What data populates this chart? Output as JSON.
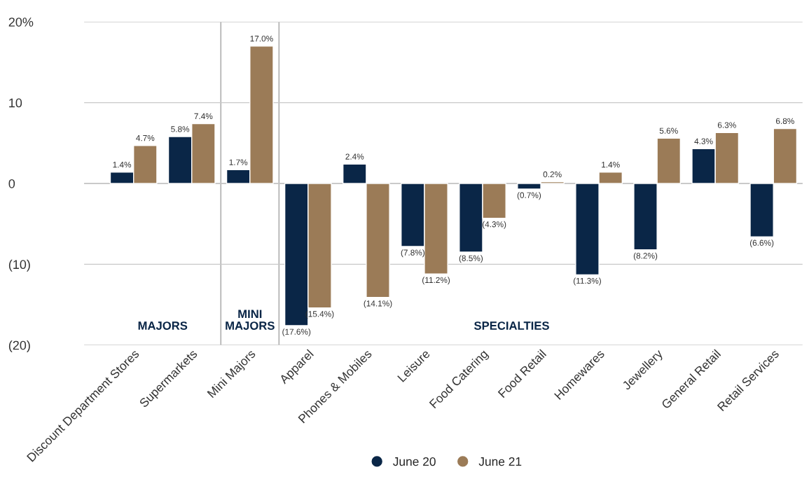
{
  "chart_data": {
    "type": "bar",
    "categories": [
      "Discount Department Stores",
      "Supermarkets",
      "Mini Majors",
      "Apparel",
      "Phones & Mobiles",
      "Leisure",
      "Food Catering",
      "Food Retail",
      "Homewares",
      "Jewellery",
      "General Retail",
      "Retail Services"
    ],
    "series": [
      {
        "name": "June 20",
        "color": "#0a2647",
        "values": [
          1.4,
          5.8,
          1.7,
          -17.6,
          2.4,
          -7.8,
          -8.5,
          -0.7,
          -11.3,
          -8.2,
          4.3,
          -6.6
        ],
        "value_labels": [
          "1.4%",
          "5.8%",
          "1.7%",
          "(17.6%)",
          "2.4%",
          "(7.8%)",
          "(8.5%)",
          "(0.7%)",
          "(11.3%)",
          "(8.2%)",
          "4.3%",
          "(6.6%)"
        ]
      },
      {
        "name": "June 21",
        "color": "#9b7b57",
        "values": [
          4.7,
          7.4,
          17.0,
          -15.4,
          -14.1,
          -11.2,
          -4.3,
          0.2,
          1.4,
          5.6,
          6.3,
          6.8
        ],
        "value_labels": [
          "4.7%",
          "7.4%",
          "17.0%",
          "(15.4%)",
          "(14.1%)",
          "(11.2%)",
          "(4.3%)",
          "0.2%",
          "1.4%",
          "5.6%",
          "6.3%",
          "6.8%"
        ]
      }
    ],
    "ylim": [
      -20,
      20
    ],
    "yticks": [
      {
        "value": -20,
        "label": "(20)"
      },
      {
        "value": -10,
        "label": "(10)"
      },
      0,
      10,
      {
        "value": 20,
        "label": "20%"
      }
    ],
    "grid": "y",
    "legend": "bottom",
    "annotations": [
      "MAJORS",
      "MINI\nMAJORS",
      "SPECIALTIES"
    ]
  }
}
